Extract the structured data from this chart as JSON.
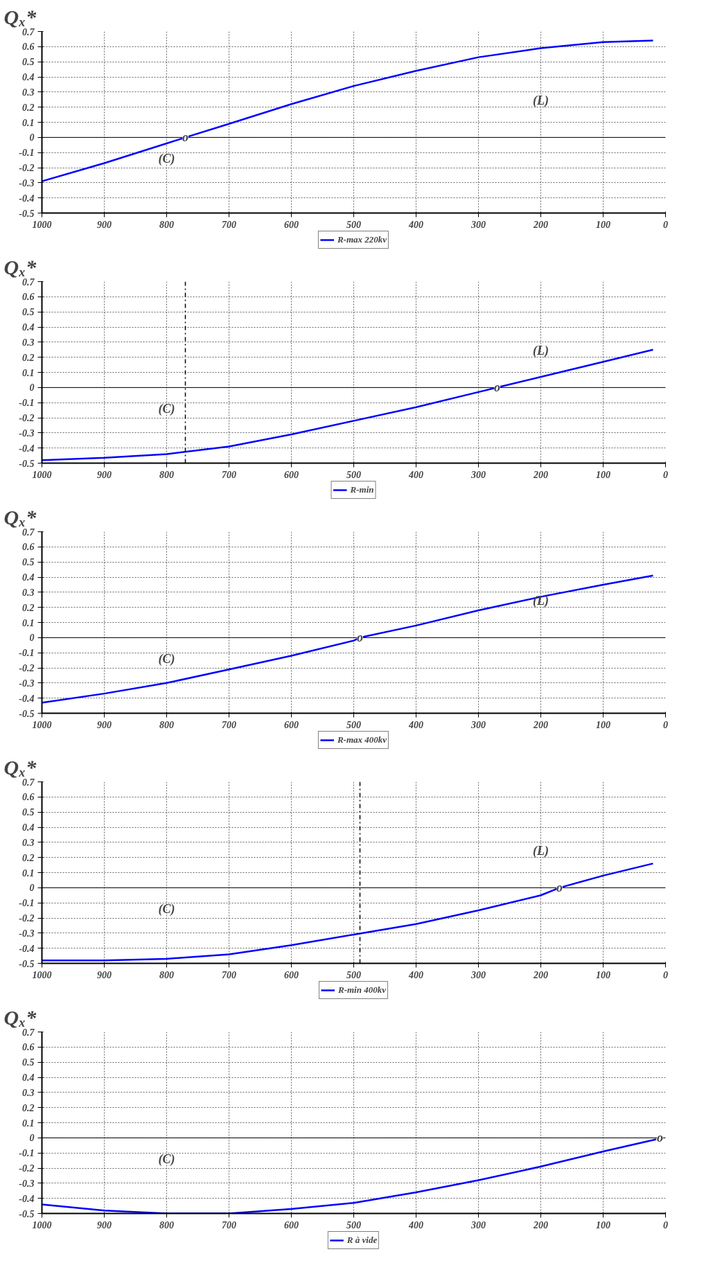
{
  "chart_data": [
    {
      "type": "line",
      "ylabel": "Qₓ*",
      "x": [
        1000,
        900,
        800,
        770,
        700,
        600,
        500,
        400,
        300,
        200,
        100,
        20
      ],
      "xlim": [
        1000,
        0
      ],
      "ylim": [
        -0.5,
        0.7
      ],
      "xticks": [
        1000,
        900,
        800,
        700,
        600,
        500,
        400,
        300,
        200,
        100,
        0
      ],
      "yticks": [
        -0.5,
        -0.4,
        -0.3,
        -0.2,
        -0.1,
        0,
        0.1,
        0.2,
        0.3,
        0.4,
        0.5,
        0.6,
        0.7
      ],
      "grid": true,
      "legend": "bottom",
      "line_style": "solid",
      "series": [
        {
          "name": "R-max 220kv",
          "color": "#0000ff",
          "values": [
            -0.29,
            -0.17,
            -0.04,
            0,
            0.09,
            0.22,
            0.34,
            0.44,
            0.53,
            0.59,
            0.63,
            0.64
          ]
        }
      ],
      "ref_lines": [
        {
          "axis": "y",
          "value": 0,
          "color": "#000000",
          "line_style": "solid"
        }
      ],
      "annotations": [
        {
          "text": "o",
          "x": 770,
          "y": 0
        },
        "(C)",
        "(L)"
      ]
    },
    {
      "type": "line",
      "ylabel": "Qₓ*",
      "x": [
        1000,
        900,
        800,
        700,
        600,
        500,
        400,
        300,
        270,
        200,
        100,
        20
      ],
      "xlim": [
        1000,
        0
      ],
      "ylim": [
        -0.5,
        0.7
      ],
      "xticks": [
        1000,
        900,
        800,
        700,
        600,
        500,
        400,
        300,
        200,
        100,
        0
      ],
      "yticks": [
        -0.5,
        -0.4,
        -0.3,
        -0.2,
        -0.1,
        0,
        0.1,
        0.2,
        0.3,
        0.4,
        0.5,
        0.6,
        0.7
      ],
      "grid": true,
      "legend": "bottom",
      "line_style": "solid",
      "series": [
        {
          "name": "R-min",
          "color": "#0000ff",
          "values": [
            -0.48,
            -0.465,
            -0.44,
            -0.39,
            -0.31,
            -0.22,
            -0.13,
            -0.03,
            0,
            0.07,
            0.17,
            0.25
          ]
        }
      ],
      "ref_lines": [
        {
          "axis": "y",
          "value": 0,
          "color": "#000000",
          "line_style": "solid"
        },
        {
          "axis": "x",
          "value": 770,
          "color": "#000000",
          "line_style": "dashdot"
        }
      ],
      "annotations": [
        {
          "text": "o",
          "x": 270,
          "y": 0
        },
        "(C)",
        "(L)"
      ]
    },
    {
      "type": "line",
      "ylabel": "Qₓ*",
      "x": [
        1000,
        900,
        800,
        700,
        600,
        500,
        490,
        400,
        300,
        200,
        100,
        20
      ],
      "xlim": [
        1000,
        0
      ],
      "ylim": [
        -0.5,
        0.7
      ],
      "xticks": [
        1000,
        900,
        800,
        700,
        600,
        500,
        400,
        300,
        200,
        100,
        0
      ],
      "yticks": [
        -0.5,
        -0.4,
        -0.3,
        -0.2,
        -0.1,
        0,
        0.1,
        0.2,
        0.3,
        0.4,
        0.5,
        0.6,
        0.7
      ],
      "grid": true,
      "legend": "bottom",
      "line_style": "solid",
      "series": [
        {
          "name": "R-max 400kv",
          "color": "#0000ff",
          "values": [
            -0.43,
            -0.37,
            -0.3,
            -0.21,
            -0.12,
            -0.02,
            0,
            0.08,
            0.18,
            0.27,
            0.35,
            0.41
          ]
        }
      ],
      "ref_lines": [
        {
          "axis": "y",
          "value": 0,
          "color": "#000000",
          "line_style": "solid"
        }
      ],
      "annotations": [
        {
          "text": "o",
          "x": 490,
          "y": 0
        },
        "(C)",
        "(L)"
      ]
    },
    {
      "type": "line",
      "ylabel": "Qₓ*",
      "x": [
        1000,
        900,
        800,
        700,
        600,
        500,
        400,
        300,
        200,
        170,
        100,
        20
      ],
      "xlim": [
        1000,
        0
      ],
      "ylim": [
        -0.5,
        0.7
      ],
      "xticks": [
        1000,
        900,
        800,
        700,
        600,
        500,
        400,
        300,
        200,
        100,
        0
      ],
      "yticks": [
        -0.5,
        -0.4,
        -0.3,
        -0.2,
        -0.1,
        0,
        0.1,
        0.2,
        0.3,
        0.4,
        0.5,
        0.6,
        0.7
      ],
      "grid": true,
      "legend": "bottom",
      "line_style": "solid",
      "series": [
        {
          "name": "R-min 400kv",
          "color": "#0000ff",
          "values": [
            -0.48,
            -0.48,
            -0.47,
            -0.44,
            -0.38,
            -0.31,
            -0.24,
            -0.15,
            -0.05,
            0,
            0.08,
            0.16
          ]
        }
      ],
      "ref_lines": [
        {
          "axis": "y",
          "value": 0,
          "color": "#000000",
          "line_style": "solid"
        },
        {
          "axis": "x",
          "value": 490,
          "color": "#000000",
          "line_style": "dashdot"
        }
      ],
      "annotations": [
        {
          "text": "o",
          "x": 170,
          "y": 0
        },
        "(C)",
        "(L)"
      ]
    },
    {
      "type": "line",
      "ylabel": "Qₓ*",
      "x": [
        1000,
        900,
        800,
        700,
        600,
        500,
        400,
        300,
        200,
        100,
        15
      ],
      "xlim": [
        1000,
        0
      ],
      "ylim": [
        -0.5,
        0.7
      ],
      "xticks": [
        1000,
        900,
        800,
        700,
        600,
        500,
        400,
        300,
        200,
        100,
        0
      ],
      "yticks": [
        -0.5,
        -0.4,
        -0.3,
        -0.2,
        -0.1,
        0,
        0.1,
        0.2,
        0.3,
        0.4,
        0.5,
        0.6,
        0.7
      ],
      "grid": true,
      "legend": "bottom",
      "line_style": "solid",
      "series": [
        {
          "name": "R à vide",
          "color": "#0000ff",
          "values": [
            -0.44,
            -0.48,
            -0.5,
            -0.5,
            -0.47,
            -0.43,
            -0.36,
            -0.28,
            -0.19,
            -0.09,
            -0.01
          ]
        }
      ],
      "ref_lines": [
        {
          "axis": "y",
          "value": 0,
          "color": "#000000",
          "line_style": "solid"
        }
      ],
      "annotations": [
        {
          "text": "o",
          "x": 9,
          "y": 0
        },
        "(C)"
      ]
    }
  ]
}
